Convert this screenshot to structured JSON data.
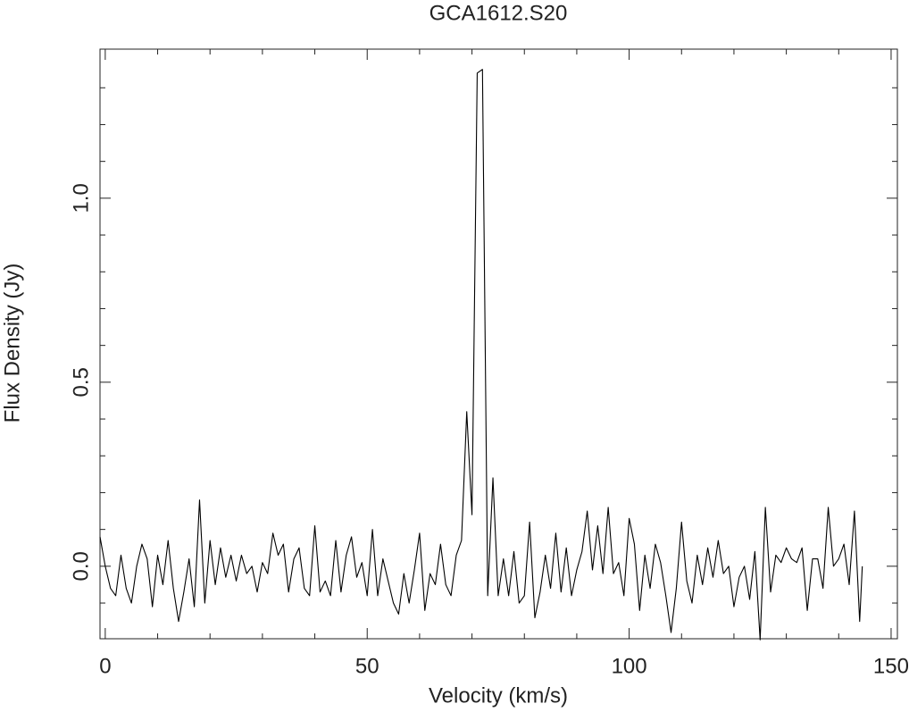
{
  "chart_data": {
    "type": "line",
    "title": "GCA1612.S20",
    "xlabel": "Velocity (km/s)",
    "ylabel": "Flux Density (Jy)",
    "x": [
      -1,
      0,
      1,
      2,
      3,
      4,
      5,
      6,
      7,
      8,
      9,
      10,
      11,
      12,
      13,
      14,
      15,
      16,
      17,
      18,
      19,
      20,
      21,
      22,
      23,
      24,
      25,
      26,
      27,
      28,
      29,
      30,
      31,
      32,
      33,
      34,
      35,
      36,
      37,
      38,
      39,
      40,
      41,
      42,
      43,
      44,
      45,
      46,
      47,
      48,
      49,
      50,
      51,
      52,
      53,
      54,
      55,
      56,
      57,
      58,
      59,
      60,
      61,
      62,
      63,
      64,
      65,
      66,
      67,
      68,
      69,
      70,
      71,
      72,
      73,
      74,
      75,
      76,
      77,
      78,
      79,
      80,
      81,
      82,
      83,
      84,
      85,
      86,
      87,
      88,
      89,
      90,
      91,
      92,
      93,
      94,
      95,
      96,
      97,
      98,
      99,
      100,
      101,
      102,
      103,
      104,
      105,
      106,
      107,
      108,
      109,
      110,
      111,
      112,
      113,
      114,
      115,
      116,
      117,
      118,
      119,
      120,
      121,
      122,
      123,
      124,
      125,
      126,
      127,
      128,
      129,
      130,
      131,
      132,
      133,
      134,
      135,
      136,
      137,
      138,
      139,
      140,
      141,
      142,
      143,
      144,
      144.5
    ],
    "series": [
      {
        "color": "#000000",
        "values": [
          0.08,
          0.0,
          -0.06,
          -0.08,
          0.03,
          -0.06,
          -0.1,
          0.0,
          0.06,
          0.02,
          -0.11,
          0.03,
          -0.05,
          0.07,
          -0.06,
          -0.15,
          -0.07,
          0.02,
          -0.11,
          0.18,
          -0.1,
          0.07,
          -0.05,
          0.05,
          -0.03,
          0.03,
          -0.04,
          0.03,
          -0.02,
          0.0,
          -0.07,
          0.01,
          -0.02,
          0.09,
          0.03,
          0.06,
          -0.07,
          0.02,
          0.05,
          -0.06,
          -0.08,
          0.11,
          -0.07,
          -0.04,
          -0.08,
          0.07,
          -0.07,
          0.03,
          0.08,
          -0.03,
          0.01,
          -0.08,
          0.1,
          -0.08,
          0.02,
          -0.04,
          -0.1,
          -0.13,
          -0.02,
          -0.1,
          -0.01,
          0.09,
          -0.12,
          -0.02,
          -0.05,
          0.06,
          -0.05,
          -0.08,
          0.03,
          0.07,
          0.42,
          0.14,
          1.34,
          1.35,
          -0.08,
          0.24,
          -0.08,
          0.02,
          -0.08,
          0.04,
          -0.1,
          -0.08,
          0.12,
          -0.14,
          -0.07,
          0.03,
          -0.06,
          0.09,
          -0.07,
          0.05,
          -0.08,
          -0.01,
          0.04,
          0.15,
          -0.01,
          0.11,
          -0.02,
          0.16,
          -0.02,
          0.01,
          -0.08,
          0.13,
          0.06,
          -0.12,
          0.03,
          -0.06,
          0.06,
          0.01,
          -0.08,
          -0.18,
          -0.06,
          0.12,
          -0.04,
          -0.1,
          0.03,
          -0.05,
          0.05,
          -0.03,
          0.07,
          -0.02,
          0.0,
          -0.11,
          -0.03,
          0.0,
          -0.09,
          0.04,
          -0.2,
          0.16,
          -0.07,
          0.03,
          0.01,
          0.05,
          0.02,
          0.01,
          0.05,
          -0.12,
          0.02,
          0.02,
          -0.06,
          0.16,
          0.0,
          0.02,
          0.06,
          -0.05,
          0.15,
          -0.15,
          0.0
        ]
      }
    ],
    "xlim": [
      -1,
      151.2
    ],
    "ylim": [
      -0.197,
      1.405
    ],
    "xticks": [
      0,
      50,
      100,
      150
    ],
    "yticks": [
      {
        "value": 0,
        "label": "0.0"
      },
      0.5,
      {
        "value": 1,
        "label": "1.0"
      }
    ],
    "xminorticks": [
      10,
      20,
      30,
      40,
      60,
      70,
      80,
      90,
      110,
      120,
      130,
      140
    ],
    "yminorticks": [
      -0.1,
      0.1,
      0.2,
      0.3,
      0.4,
      0.6,
      0.7,
      0.8,
      0.9,
      1.1,
      1.2,
      1.3
    ],
    "grid": false
  }
}
